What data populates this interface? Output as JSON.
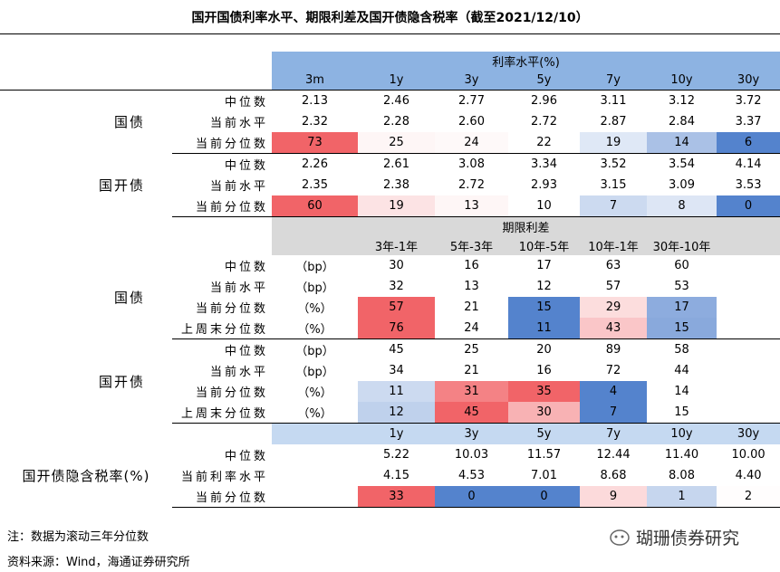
{
  "title": "国开国债利率水平、期限利差及国开债隐含税率（截至2021/12/10）",
  "rates": {
    "header": "利率水平(%)",
    "columns": [
      "3m",
      "1y",
      "3y",
      "5y",
      "7y",
      "10y",
      "30y"
    ],
    "groups": [
      {
        "name": "国债",
        "rows": [
          {
            "label": "中位数",
            "values": [
              "2.13",
              "2.46",
              "2.77",
              "2.96",
              "3.11",
              "3.12",
              "3.72"
            ]
          },
          {
            "label": "当前水平",
            "values": [
              "2.32",
              "2.28",
              "2.60",
              "2.72",
              "2.87",
              "2.84",
              "3.37"
            ]
          },
          {
            "label": "当前分位数",
            "values": [
              "73",
              "25",
              "24",
              "22",
              "19",
              "14",
              "6"
            ]
          }
        ]
      },
      {
        "name": "国开债",
        "rows": [
          {
            "label": "中位数",
            "values": [
              "2.26",
              "2.61",
              "3.08",
              "3.34",
              "3.52",
              "3.54",
              "4.14"
            ]
          },
          {
            "label": "当前水平",
            "values": [
              "2.35",
              "2.38",
              "2.72",
              "2.93",
              "3.15",
              "3.09",
              "3.53"
            ]
          },
          {
            "label": "当前分位数",
            "values": [
              "60",
              "19",
              "13",
              "10",
              "7",
              "8",
              "0"
            ]
          }
        ]
      }
    ]
  },
  "spreads": {
    "header": "期限利差",
    "columns": [
      "3年-1年",
      "5年-3年",
      "10年-5年",
      "10年-1年",
      "30年-10年"
    ],
    "groups": [
      {
        "name": "国债",
        "rows": [
          {
            "label": "中位数",
            "unit": "（bp）",
            "values": [
              "30",
              "16",
              "17",
              "63",
              "60"
            ]
          },
          {
            "label": "当前水平",
            "unit": "（bp）",
            "values": [
              "32",
              "13",
              "12",
              "57",
              "53"
            ]
          },
          {
            "label": "当前分位数",
            "unit": "（%）",
            "values": [
              "57",
              "21",
              "15",
              "29",
              "17"
            ]
          },
          {
            "label": "上周末分位数",
            "unit": "（%）",
            "values": [
              "76",
              "24",
              "11",
              "43",
              "15"
            ]
          }
        ]
      },
      {
        "name": "国开债",
        "rows": [
          {
            "label": "中位数",
            "unit": "（bp）",
            "values": [
              "45",
              "25",
              "20",
              "89",
              "58"
            ]
          },
          {
            "label": "当前水平",
            "unit": "（bp）",
            "values": [
              "34",
              "21",
              "16",
              "72",
              "44"
            ]
          },
          {
            "label": "当前分位数",
            "unit": "（%）",
            "values": [
              "11",
              "31",
              "35",
              "4",
              "14"
            ]
          },
          {
            "label": "上周末分位数",
            "unit": "（%）",
            "values": [
              "12",
              "45",
              "30",
              "7",
              "15"
            ]
          }
        ]
      }
    ]
  },
  "tax": {
    "name": "国开债隐含税率(%)",
    "columns": [
      "1y",
      "3y",
      "5y",
      "7y",
      "10y",
      "30y"
    ],
    "rows": [
      {
        "label": "中位数",
        "values": [
          "5.22",
          "10.03",
          "11.57",
          "12.44",
          "11.40",
          "10.00"
        ]
      },
      {
        "label": "当前利率水平",
        "values": [
          "4.15",
          "4.53",
          "7.01",
          "8.68",
          "8.08",
          "4.40"
        ]
      },
      {
        "label": "当前分位数",
        "values": [
          "33",
          "0",
          "0",
          "9",
          "1",
          "2"
        ]
      }
    ]
  },
  "notes": [
    "注：数据为滚动三年分位数",
    "资料来源：Wind，海通证券研究所"
  ],
  "watermark": "瑚珊债券研究"
}
